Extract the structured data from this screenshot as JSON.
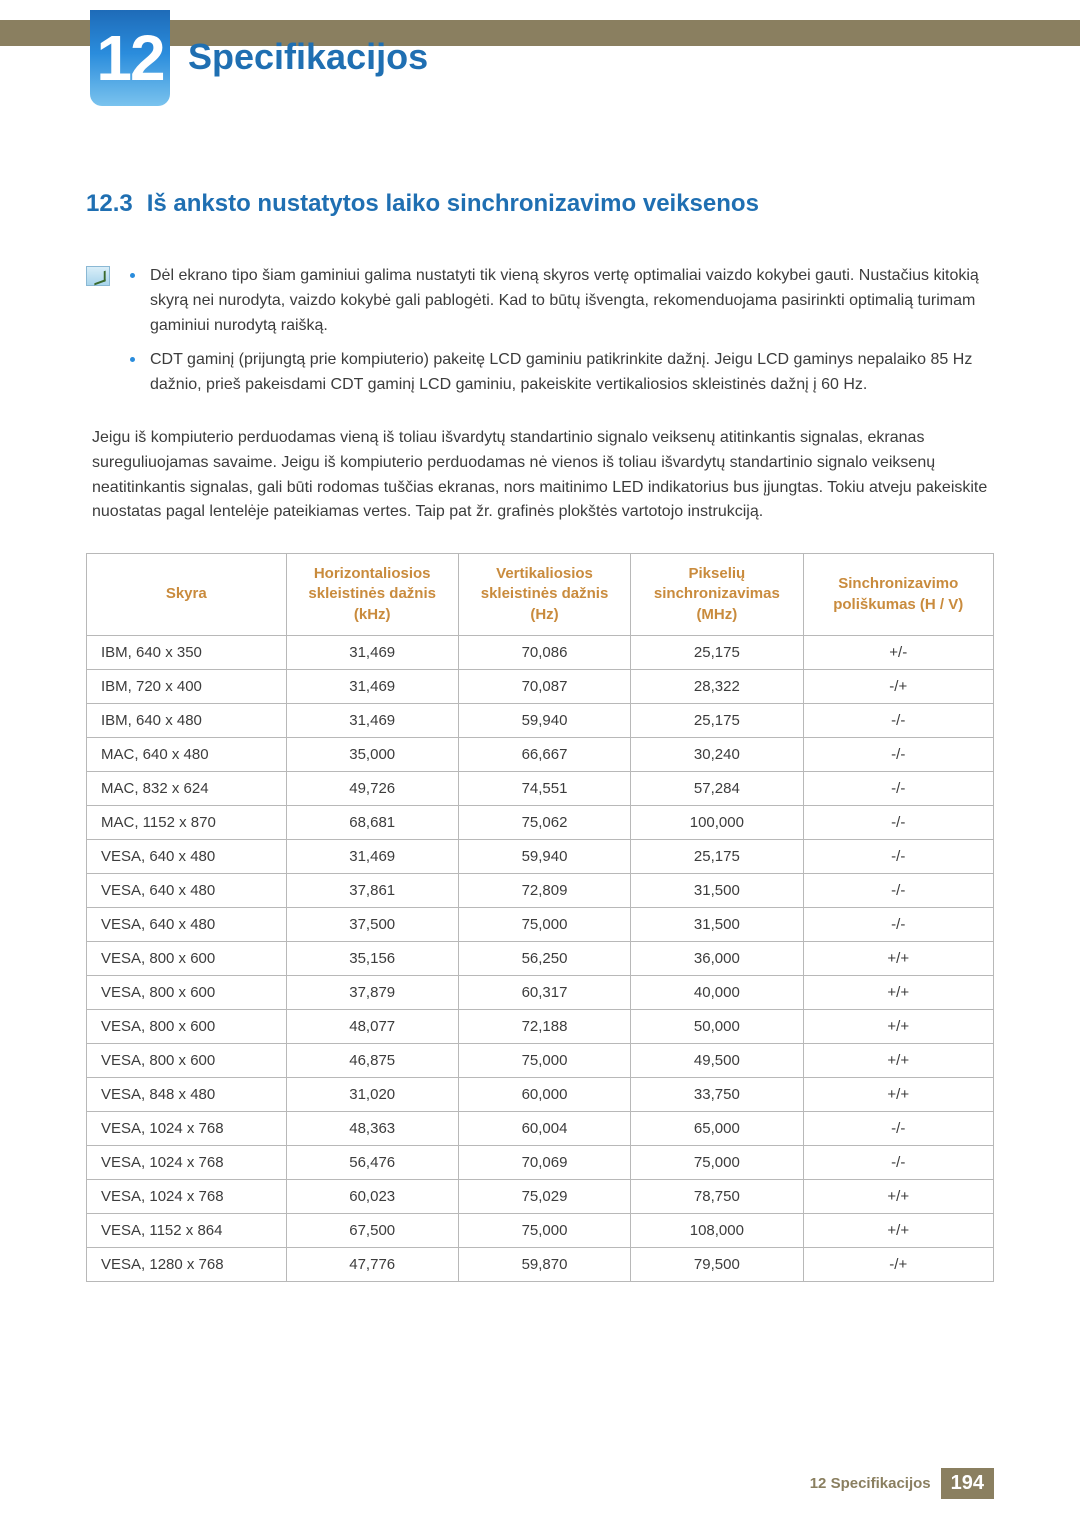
{
  "colors": {
    "top_bar": "#8a7f60",
    "badge_gradient": [
      "#1e6bb8",
      "#2a8cdc",
      "#7ac3ee"
    ],
    "heading": "#1f6fb2",
    "header_text": "#c98b3d",
    "body_text": "#3c3c3c",
    "border": "#b8b8b8",
    "bullet": "#2a8cdc"
  },
  "typography": {
    "body_pt": 12,
    "heading_pt": 18,
    "badge_pt": 48
  },
  "chapter": {
    "number": "12",
    "title": "Specifikacijos"
  },
  "section": {
    "number": "12.3",
    "title": "Iš anksto nustatytos laiko sinchronizavimo veiksenos"
  },
  "notes": [
    "Dėl ekrano tipo šiam gaminiui galima nustatyti tik vieną skyros vertę optimaliai vaizdo kokybei gauti. Nustačius kitokią skyrą nei nurodyta, vaizdo kokybė gali pablogėti. Kad to būtų išvengta, rekomenduojama pasirinkti optimalią turimam gaminiui nurodytą raišką.",
    "CDT gaminį (prijungtą prie kompiuterio) pakeitę LCD gaminiu patikrinkite dažnį. Jeigu LCD gaminys nepalaiko 85 Hz dažnio, prieš pakeisdami CDT gaminį LCD gaminiu, pakeiskite vertikaliosios skleistinės dažnį į 60 Hz."
  ],
  "body_paragraph": "Jeigu iš kompiuterio perduodamas vieną iš toliau išvardytų standartinio signalo veiksenų atitinkantis signalas, ekranas sureguliuojamas savaime. Jeigu iš kompiuterio perduodamas nė vienos iš toliau išvardytų standartinio signalo veiksenų neatitinkantis signalas, gali būti rodomas tuščias ekranas, nors maitinimo LED indikatorius bus įjungtas. Tokiu atveju pakeiskite nuostatas pagal lentelėje pateikiamas vertes. Taip pat žr. grafinės plokštės vartotojo instrukciją.",
  "table": {
    "type": "table",
    "column_widths_pct": [
      22,
      19,
      19,
      19,
      21
    ],
    "header_color": "#c98b3d",
    "border_color": "#b8b8b8",
    "columns": [
      "Skyra",
      "Horizontaliosios skleistinės dažnis (kHz)",
      "Vertikaliosios skleistinės dažnis (Hz)",
      "Pikselių sinchronizavimas (MHz)",
      "Sinchronizavimo poliškumas (H / V)"
    ],
    "rows": [
      [
        "IBM, 640 x 350",
        "31,469",
        "70,086",
        "25,175",
        "+/-"
      ],
      [
        "IBM, 720 x 400",
        "31,469",
        "70,087",
        "28,322",
        "-/+"
      ],
      [
        "IBM, 640 x 480",
        "31,469",
        "59,940",
        "25,175",
        "-/-"
      ],
      [
        "MAC, 640 x 480",
        "35,000",
        "66,667",
        "30,240",
        "-/-"
      ],
      [
        "MAC, 832 x 624",
        "49,726",
        "74,551",
        "57,284",
        "-/-"
      ],
      [
        "MAC, 1152 x 870",
        "68,681",
        "75,062",
        "100,000",
        "-/-"
      ],
      [
        "VESA, 640 x 480",
        "31,469",
        "59,940",
        "25,175",
        "-/-"
      ],
      [
        "VESA, 640 x 480",
        "37,861",
        "72,809",
        "31,500",
        "-/-"
      ],
      [
        "VESA, 640 x 480",
        "37,500",
        "75,000",
        "31,500",
        "-/-"
      ],
      [
        "VESA, 800 x 600",
        "35,156",
        "56,250",
        "36,000",
        "+/+"
      ],
      [
        "VESA, 800 x 600",
        "37,879",
        "60,317",
        "40,000",
        "+/+"
      ],
      [
        "VESA, 800 x 600",
        "48,077",
        "72,188",
        "50,000",
        "+/+"
      ],
      [
        "VESA, 800 x 600",
        "46,875",
        "75,000",
        "49,500",
        "+/+"
      ],
      [
        "VESA, 848 x 480",
        "31,020",
        "60,000",
        "33,750",
        "+/+"
      ],
      [
        "VESA, 1024 x 768",
        "48,363",
        "60,004",
        "65,000",
        "-/-"
      ],
      [
        "VESA, 1024 x 768",
        "56,476",
        "70,069",
        "75,000",
        "-/-"
      ],
      [
        "VESA, 1024 x 768",
        "60,023",
        "75,029",
        "78,750",
        "+/+"
      ],
      [
        "VESA, 1152 x 864",
        "67,500",
        "75,000",
        "108,000",
        "+/+"
      ],
      [
        "VESA, 1280 x 768",
        "47,776",
        "59,870",
        "79,500",
        "-/+"
      ]
    ]
  },
  "footer": {
    "label": "12 Specifikacijos",
    "page": "194"
  }
}
